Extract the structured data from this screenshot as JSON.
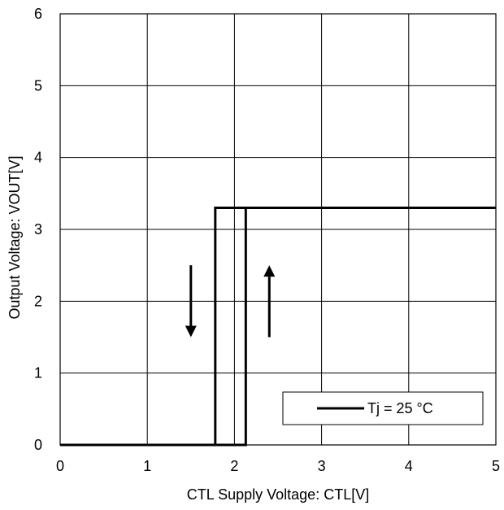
{
  "chart_data": {
    "type": "line",
    "xlabel": "CTL Supply Voltage: CTL[V]",
    "ylabel": "Output Voltage: VOUT[V]",
    "xlim": [
      0,
      5
    ],
    "ylim": [
      0,
      6
    ],
    "xticks": [
      "0",
      "1",
      "2",
      "3",
      "4",
      "5"
    ],
    "yticks": [
      "0",
      "1",
      "2",
      "3",
      "4",
      "5",
      "6"
    ],
    "grid": true,
    "legend_position": "bottom-right",
    "series": [
      {
        "name": "Tj = 25 °C",
        "color": "#000000",
        "curves": [
          {
            "direction": "rising",
            "x": [
              0,
              2.13,
              2.13,
              5
            ],
            "y": [
              0,
              0,
              3.3,
              3.3
            ]
          },
          {
            "direction": "falling",
            "x": [
              5,
              1.78,
              1.78,
              0
            ],
            "y": [
              3.3,
              3.3,
              0,
              0
            ]
          }
        ]
      }
    ],
    "annotations": [
      {
        "type": "arrow",
        "direction": "down",
        "x": 1.5,
        "y_from": 2.5,
        "y_to": 1.5
      },
      {
        "type": "arrow",
        "direction": "up",
        "x": 2.4,
        "y_from": 1.5,
        "y_to": 2.5
      }
    ]
  }
}
